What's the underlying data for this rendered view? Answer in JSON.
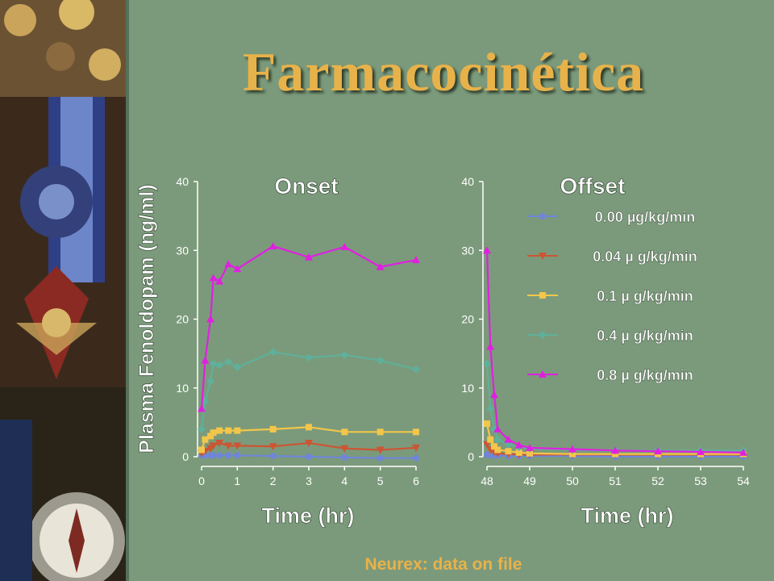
{
  "slide": {
    "title": "Farmacocinética",
    "source": "Neurex: data on file"
  },
  "colors": {
    "background": "#7b9a7b",
    "title": "#e8b24a",
    "axis_text": "#ffffff"
  },
  "chart_data": [
    {
      "type": "line",
      "title": "Onset",
      "xlabel": "Time (hr)",
      "ylabel": "Plasma Fenoldopam (ng/ml)",
      "xlim": [
        0,
        6
      ],
      "ylim": [
        0,
        40
      ],
      "xticks": [
        0,
        1,
        2,
        3,
        4,
        5,
        6
      ],
      "yticks": [
        0,
        10,
        20,
        30,
        40
      ],
      "grid": false,
      "series": [
        {
          "name": "0.00 µg/kg/min",
          "color": "#6f86d8",
          "marker": "circle",
          "x": [
            0,
            0.1,
            0.25,
            0.33,
            0.5,
            0.75,
            1,
            2,
            3,
            4,
            5,
            6
          ],
          "y": [
            0.2,
            0.2,
            0.2,
            0.2,
            0.2,
            0.2,
            0.2,
            0.1,
            0,
            -0.1,
            -0.2,
            -0.2
          ]
        },
        {
          "name": "0.04 µ g/kg/min",
          "color": "#cc5533",
          "marker": "triangle-down",
          "x": [
            0,
            0.1,
            0.25,
            0.33,
            0.5,
            0.75,
            1,
            2,
            3,
            4,
            5,
            6
          ],
          "y": [
            0.5,
            0.8,
            1.2,
            1.6,
            2.0,
            1.6,
            1.6,
            1.5,
            2.0,
            1.2,
            1.0,
            1.3
          ]
        },
        {
          "name": "0.1 µ g/kg/min",
          "color": "#f2c64a",
          "marker": "square",
          "x": [
            0,
            0.1,
            0.25,
            0.33,
            0.5,
            0.75,
            1,
            2,
            3,
            4,
            5,
            6
          ],
          "y": [
            1.0,
            2.5,
            3.0,
            3.5,
            3.8,
            3.8,
            3.8,
            4.0,
            4.3,
            3.6,
            3.6,
            3.6
          ]
        },
        {
          "name": "0.4 µ g/kg/min",
          "color": "#5fb09a",
          "marker": "diamond",
          "x": [
            0,
            0.1,
            0.25,
            0.33,
            0.5,
            0.75,
            1,
            2,
            3,
            4,
            5,
            6
          ],
          "y": [
            4.0,
            8.0,
            11.0,
            13.5,
            13.3,
            13.8,
            13.0,
            15.2,
            14.4,
            14.8,
            14.0,
            12.7
          ]
        },
        {
          "name": "0.8 µ g/kg/min",
          "color": "#e020e0",
          "marker": "triangle-up",
          "x": [
            0,
            0.1,
            0.25,
            0.33,
            0.5,
            0.75,
            1,
            2,
            3,
            4,
            5,
            6
          ],
          "y": [
            7.0,
            14.0,
            20.0,
            26.0,
            25.5,
            28.0,
            27.3,
            30.6,
            29.0,
            30.5,
            27.6,
            28.6
          ]
        }
      ]
    },
    {
      "type": "line",
      "title": "Offset",
      "xlabel": "Time (hr)",
      "xlim": [
        48,
        54
      ],
      "ylim": [
        0,
        40
      ],
      "xticks": [
        48,
        49,
        50,
        51,
        52,
        53,
        54
      ],
      "yticks": [
        0,
        10,
        20,
        30,
        40
      ],
      "grid": false,
      "legend_position": "top-right",
      "series": [
        {
          "name": "0.00 µg/kg/min",
          "color": "#6f86d8",
          "marker": "circle",
          "x": [
            48,
            48.08,
            48.17,
            48.25,
            48.5,
            48.75,
            49,
            50,
            51,
            52,
            53,
            54
          ],
          "y": [
            0.3,
            0.2,
            0.2,
            0.2,
            0.1,
            0.1,
            0.1,
            0.1,
            0,
            0,
            0,
            0
          ]
        },
        {
          "name": "0.04 µ g/kg/min",
          "color": "#cc5533",
          "marker": "triangle-down",
          "x": [
            48,
            48.08,
            48.17,
            48.25,
            48.5,
            48.75,
            49,
            50,
            51,
            52,
            53,
            54
          ],
          "y": [
            1.8,
            1.0,
            0.7,
            0.5,
            0.4,
            0.3,
            0.3,
            0.3,
            0.3,
            0.3,
            0.3,
            0.3
          ]
        },
        {
          "name": "0.1 µ g/kg/min",
          "color": "#f2c64a",
          "marker": "square",
          "x": [
            48,
            48.08,
            48.17,
            48.25,
            48.5,
            48.75,
            49,
            50,
            51,
            52,
            53,
            54
          ],
          "y": [
            4.8,
            2.5,
            1.5,
            1.0,
            0.8,
            0.6,
            0.5,
            0.4,
            0.4,
            0.4,
            0.4,
            0.4
          ]
        },
        {
          "name": "0.4 µ g/kg/min",
          "color": "#5fb09a",
          "marker": "diamond",
          "x": [
            48,
            48.08,
            48.17,
            48.25,
            48.5,
            48.75,
            49,
            50,
            51,
            52,
            53,
            54
          ],
          "y": [
            13.5,
            7.0,
            4.0,
            2.5,
            1.8,
            1.4,
            1.2,
            1.0,
            0.9,
            0.9,
            0.9,
            0.9
          ]
        },
        {
          "name": "0.8 µ g/kg/min",
          "color": "#e020e0",
          "marker": "triangle-up",
          "x": [
            48,
            48.08,
            48.17,
            48.25,
            48.5,
            48.75,
            49,
            50,
            51,
            52,
            53,
            54
          ],
          "y": [
            30.0,
            16.0,
            9.0,
            4.0,
            2.5,
            1.7,
            1.3,
            1.1,
            0.9,
            0.8,
            0.7,
            0.6
          ]
        }
      ]
    }
  ]
}
